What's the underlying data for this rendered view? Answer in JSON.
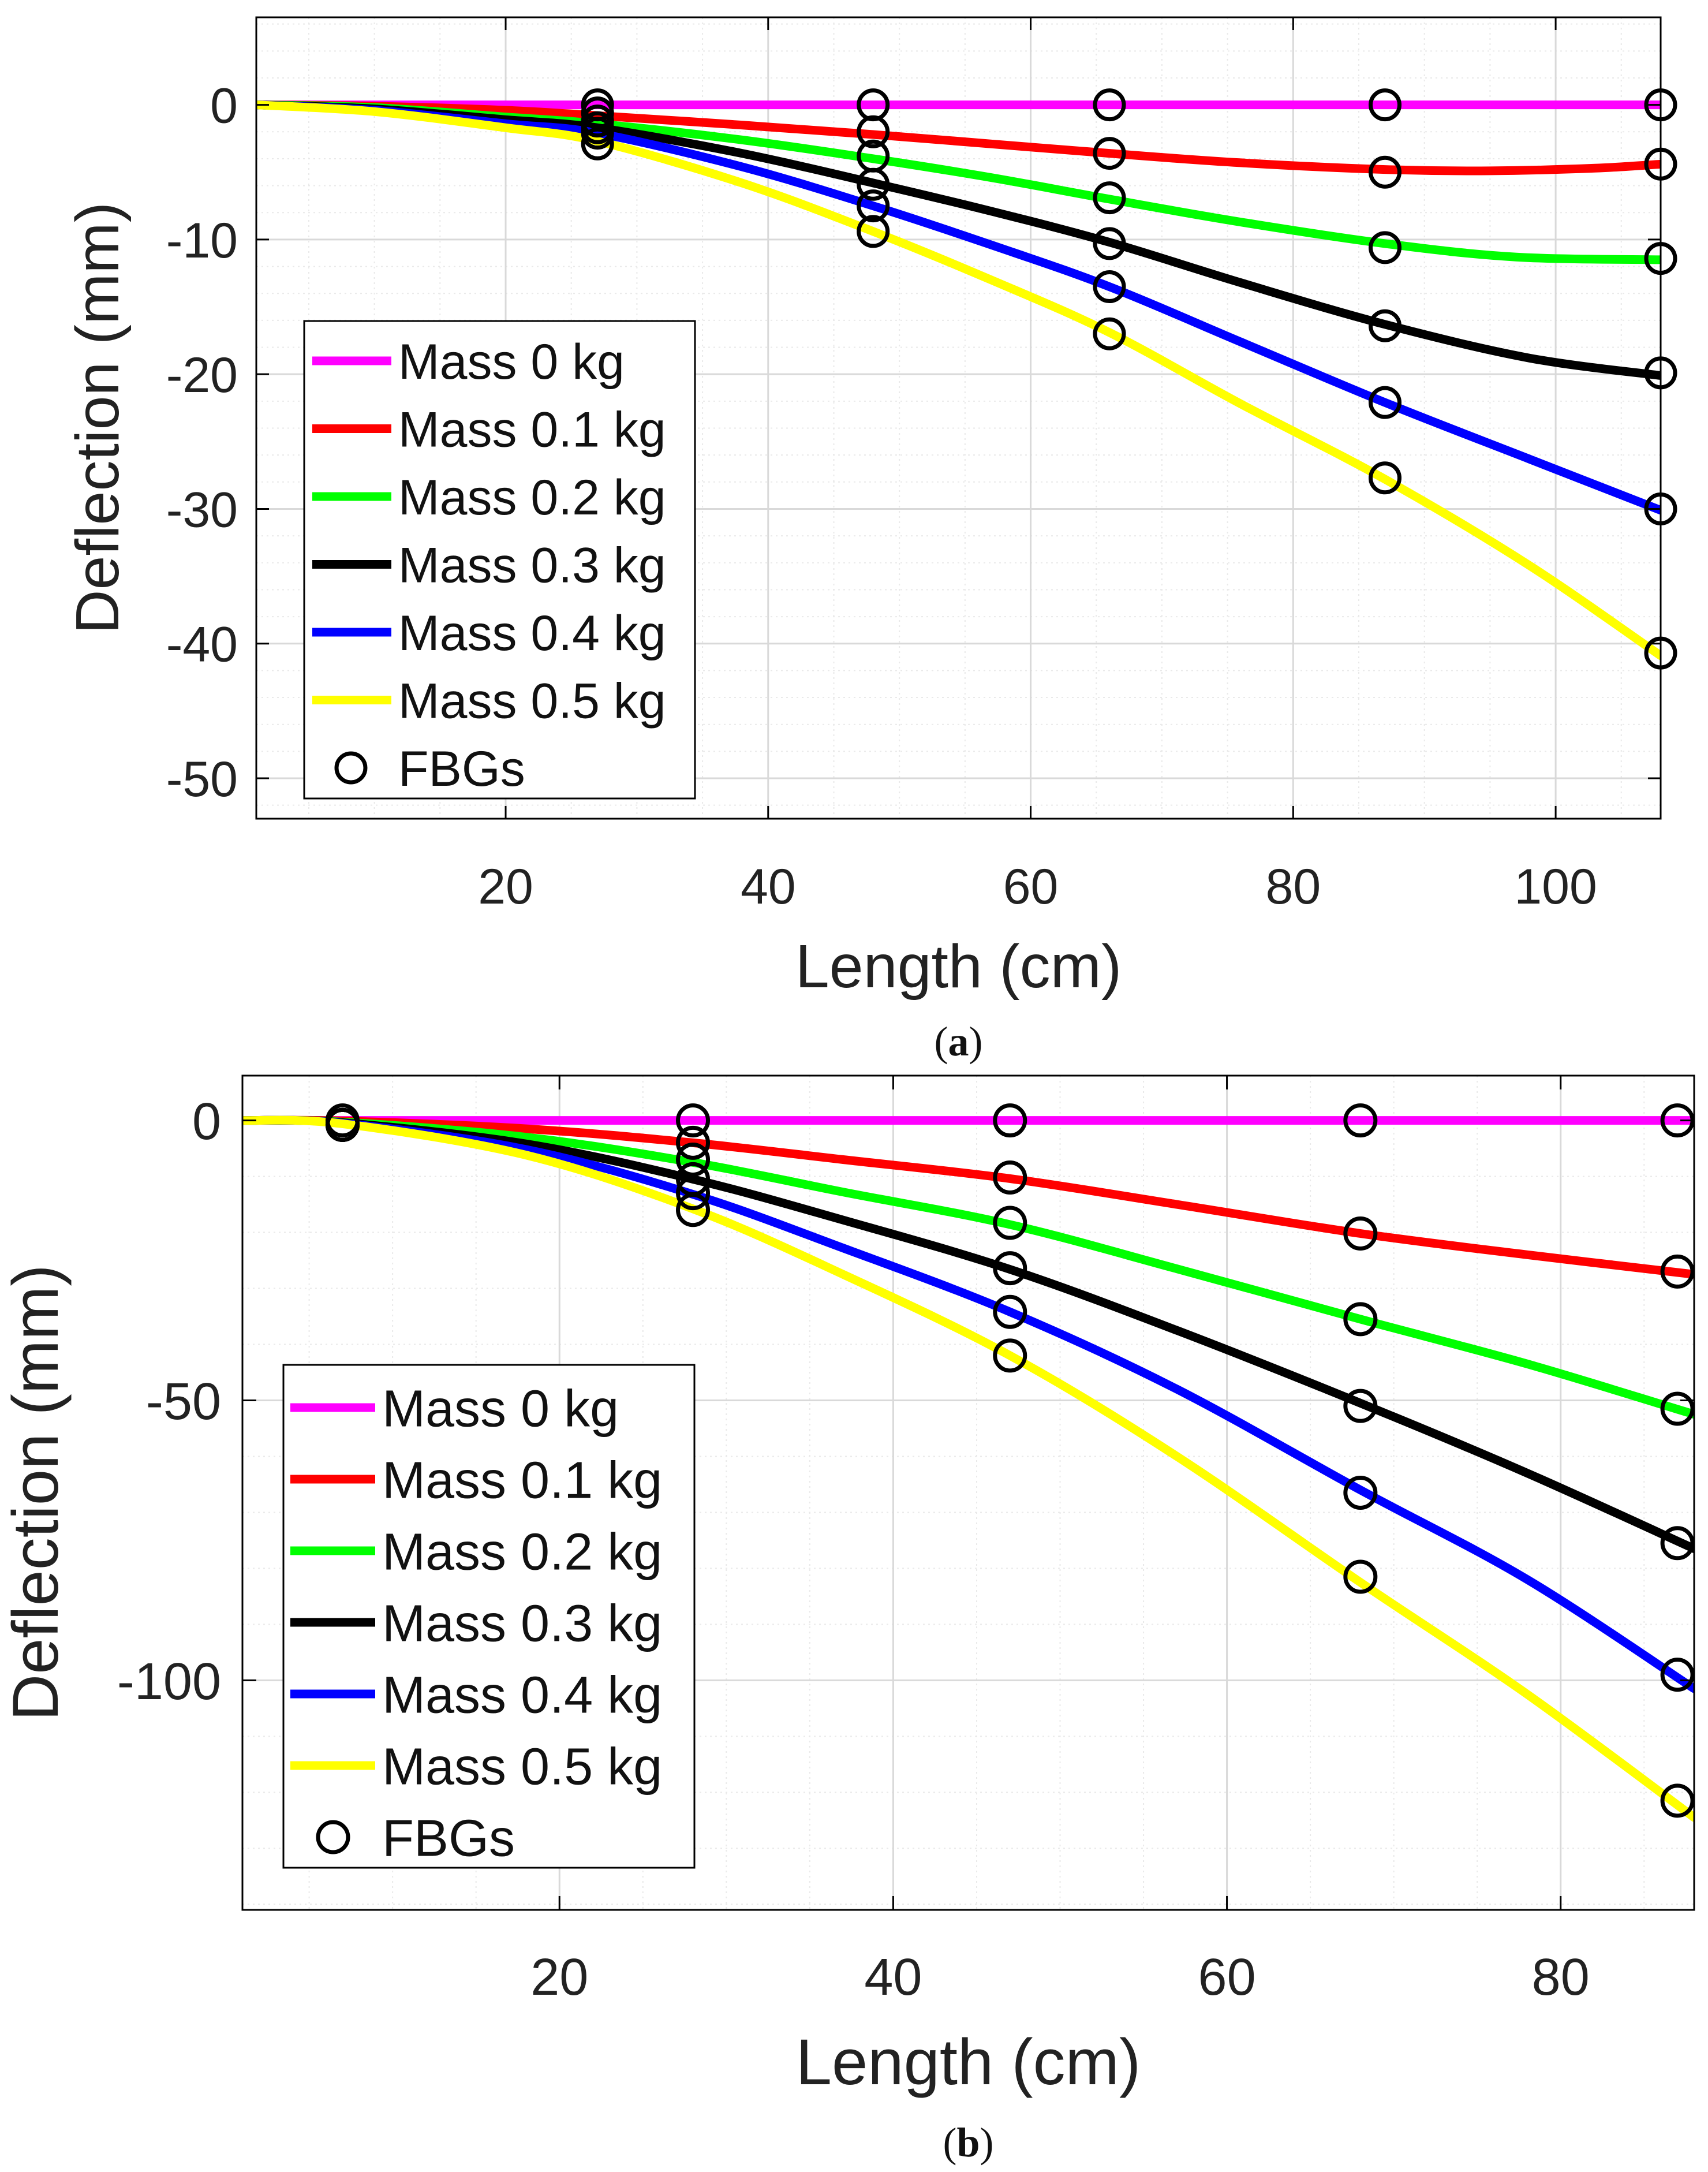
{
  "figure": {
    "colors": {
      "axis": "#000000",
      "grid_major": "#d9d9d9",
      "grid_minor": "#e9e9e9",
      "background": "#ffffff"
    }
  },
  "chart_data": [
    {
      "type": "line",
      "panel_label": "a",
      "title": "",
      "xlabel": "Length (cm)",
      "ylabel": "Deflection (mm)",
      "xlim": [
        1,
        108
      ],
      "ylim": [
        -53,
        6.5
      ],
      "xticks": [
        20,
        40,
        60,
        80,
        100
      ],
      "xtick_labels": [
        "20",
        "40",
        "60",
        "80",
        "100"
      ],
      "yticks": [
        0,
        -10,
        -20,
        -30,
        -40,
        -50
      ],
      "ytick_labels": [
        "0",
        "-10",
        "-20",
        "-30",
        "-40",
        "-50"
      ],
      "grid": true,
      "legend_position": "lower-left",
      "legend_marker_label": "FBGs",
      "fbg_x": [
        27,
        48,
        66,
        87,
        108
      ],
      "series": [
        {
          "name": "Mass 0 kg",
          "color": "#ff00ff",
          "curve": [
            [
              1,
              0
            ],
            [
              10,
              0
            ],
            [
              27,
              0
            ],
            [
              48,
              0
            ],
            [
              66,
              0
            ],
            [
              87,
              0
            ],
            [
              108,
              0
            ]
          ],
          "fbg": [
            0,
            0,
            0,
            0,
            0
          ]
        },
        {
          "name": "Mass 0.1 kg",
          "color": "#ff0000",
          "curve": [
            [
              1,
              0
            ],
            [
              10,
              -0.1
            ],
            [
              20,
              -0.4
            ],
            [
              27,
              -0.8
            ],
            [
              38,
              -1.5
            ],
            [
              48,
              -2.2
            ],
            [
              57,
              -2.9
            ],
            [
              66,
              -3.6
            ],
            [
              76,
              -4.3
            ],
            [
              87,
              -4.8
            ],
            [
              95,
              -4.9
            ],
            [
              103,
              -4.7
            ],
            [
              108,
              -4.4
            ]
          ],
          "fbg": [
            -0.6,
            -2.0,
            -3.6,
            -5.0,
            -4.4
          ]
        },
        {
          "name": "Mass 0.2 kg",
          "color": "#00ff00",
          "curve": [
            [
              1,
              0
            ],
            [
              10,
              -0.2
            ],
            [
              20,
              -0.9
            ],
            [
              27,
              -1.4
            ],
            [
              38,
              -2.6
            ],
            [
              48,
              -4.0
            ],
            [
              57,
              -5.4
            ],
            [
              66,
              -7.0
            ],
            [
              76,
              -8.7
            ],
            [
              87,
              -10.3
            ],
            [
              97,
              -11.3
            ],
            [
              108,
              -11.5
            ]
          ],
          "fbg": [
            -1.2,
            -3.8,
            -6.9,
            -10.6,
            -11.4
          ]
        },
        {
          "name": "Mass 0.3 kg",
          "color": "#000000",
          "curve": [
            [
              1,
              0
            ],
            [
              10,
              -0.3
            ],
            [
              20,
              -1.1
            ],
            [
              27,
              -1.7
            ],
            [
              38,
              -3.6
            ],
            [
              48,
              -5.8
            ],
            [
              57,
              -7.9
            ],
            [
              66,
              -10.2
            ],
            [
              76,
              -13.2
            ],
            [
              87,
              -16.3
            ],
            [
              98,
              -18.8
            ],
            [
              108,
              -20.1
            ]
          ],
          "fbg": [
            -1.7,
            -5.9,
            -10.3,
            -16.4,
            -19.9
          ]
        },
        {
          "name": "Mass 0.4 kg",
          "color": "#0000ff",
          "curve": [
            [
              1,
              0
            ],
            [
              10,
              -0.4
            ],
            [
              20,
              -1.4
            ],
            [
              27,
              -2.1
            ],
            [
              38,
              -4.6
            ],
            [
              48,
              -7.5
            ],
            [
              57,
              -10.4
            ],
            [
              66,
              -13.5
            ],
            [
              76,
              -17.6
            ],
            [
              87,
              -22.1
            ],
            [
              98,
              -26.3
            ],
            [
              108,
              -30.1
            ]
          ],
          "fbg": [
            -2.1,
            -7.5,
            -13.5,
            -22.1,
            -30.0
          ]
        },
        {
          "name": "Mass 0.5 kg",
          "color": "#ffff00",
          "curve": [
            [
              1,
              0
            ],
            [
              10,
              -0.5
            ],
            [
              20,
              -1.7
            ],
            [
              27,
              -2.7
            ],
            [
              38,
              -5.8
            ],
            [
              48,
              -9.4
            ],
            [
              57,
              -13.0
            ],
            [
              66,
              -16.9
            ],
            [
              76,
              -22.2
            ],
            [
              87,
              -27.8
            ],
            [
              98,
              -34.2
            ],
            [
              108,
              -40.9
            ]
          ],
          "fbg": [
            -2.9,
            -9.4,
            -17.0,
            -27.7,
            -40.7
          ]
        }
      ]
    },
    {
      "type": "line",
      "panel_label": "b",
      "title": "",
      "xlabel": "Length (cm)",
      "ylabel": "Deflection (mm)",
      "xlim": [
        1,
        88
      ],
      "ylim": [
        -141,
        8
      ],
      "xticks": [
        20,
        40,
        60,
        80
      ],
      "xtick_labels": [
        "20",
        "40",
        "60",
        "80"
      ],
      "yticks": [
        0,
        -50,
        -100
      ],
      "ytick_labels": [
        "0",
        "-50",
        "-100"
      ],
      "grid": true,
      "legend_position": "lower-left",
      "legend_marker_label": "FBGs",
      "fbg_x": [
        7,
        28,
        47,
        68,
        87
      ],
      "series": [
        {
          "name": "Mass 0 kg",
          "color": "#ff00ff",
          "curve": [
            [
              1,
              0
            ],
            [
              7,
              0
            ],
            [
              28,
              0
            ],
            [
              47,
              0
            ],
            [
              68,
              0
            ],
            [
              88,
              0
            ]
          ],
          "fbg": [
            0,
            0,
            0,
            0,
            0
          ]
        },
        {
          "name": "Mass 0.1 kg",
          "color": "#ff0000",
          "curve": [
            [
              1,
              0
            ],
            [
              7,
              -0.1
            ],
            [
              18,
              -1.5
            ],
            [
              28,
              -4.0
            ],
            [
              37,
              -7.0
            ],
            [
              47,
              -10.4
            ],
            [
              57,
              -15.0
            ],
            [
              68,
              -20.2
            ],
            [
              78,
              -24.0
            ],
            [
              88,
              -27.5
            ]
          ],
          "fbg": [
            -0.8,
            -4.0,
            -10.2,
            -20.2,
            -27.0
          ]
        },
        {
          "name": "Mass 0.2 kg",
          "color": "#00ff00",
          "curve": [
            [
              1,
              0
            ],
            [
              7,
              -0.3
            ],
            [
              18,
              -3.0
            ],
            [
              28,
              -7.5
            ],
            [
              37,
              -12.8
            ],
            [
              47,
              -18.6
            ],
            [
              57,
              -26.5
            ],
            [
              68,
              -35.5
            ],
            [
              78,
              -43.5
            ],
            [
              88,
              -52.5
            ]
          ],
          "fbg": [
            -0.8,
            -7.0,
            -18.3,
            -35.5,
            -51.5
          ]
        },
        {
          "name": "Mass 0.3 kg",
          "color": "#000000",
          "curve": [
            [
              1,
              0
            ],
            [
              7,
              -0.4
            ],
            [
              18,
              -4.2
            ],
            [
              28,
              -10.5
            ],
            [
              37,
              -17.8
            ],
            [
              47,
              -26.6
            ],
            [
              57,
              -37.5
            ],
            [
              68,
              -50.5
            ],
            [
              78,
              -63.0
            ],
            [
              88,
              -76.5
            ]
          ],
          "fbg": [
            -0.8,
            -10.5,
            -26.4,
            -51.0,
            -75.5
          ]
        },
        {
          "name": "Mass 0.4 kg",
          "color": "#0000ff",
          "curve": [
            [
              1,
              0
            ],
            [
              7,
              -0.5
            ],
            [
              18,
              -5.2
            ],
            [
              28,
              -13.2
            ],
            [
              37,
              -22.8
            ],
            [
              47,
              -34.2
            ],
            [
              57,
              -48.0
            ],
            [
              68,
              -66.0
            ],
            [
              78,
              -82.0
            ],
            [
              88,
              -101.5
            ]
          ],
          "fbg": [
            -0.8,
            -13.0,
            -34.2,
            -66.5,
            -99.0
          ]
        },
        {
          "name": "Mass 0.5 kg",
          "color": "#ffff00",
          "curve": [
            [
              1,
              0
            ],
            [
              7,
              -0.6
            ],
            [
              18,
              -6.2
            ],
            [
              28,
              -15.8
            ],
            [
              37,
              -27.5
            ],
            [
              47,
              -42.0
            ],
            [
              57,
              -60.0
            ],
            [
              68,
              -82.5
            ],
            [
              78,
              -102.5
            ],
            [
              88,
              -124.5
            ]
          ],
          "fbg": [
            -0.8,
            -16.0,
            -42.0,
            -81.5,
            -121.5
          ]
        }
      ]
    }
  ]
}
